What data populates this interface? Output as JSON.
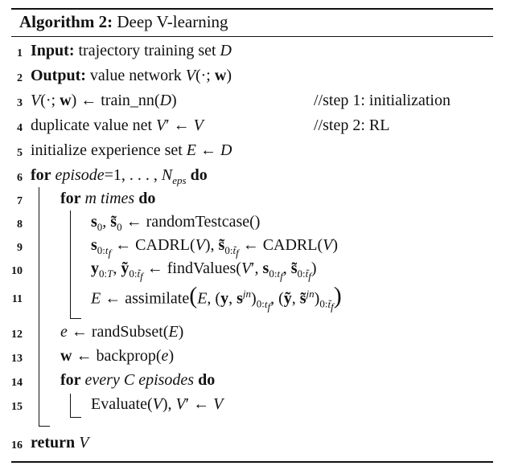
{
  "caption": {
    "label": "Algorithm 2:",
    "title": "Deep V-learning"
  },
  "line_numbers": [
    "1",
    "2",
    "3",
    "4",
    "5",
    "6",
    "7",
    "8",
    "9",
    "10",
    "11",
    "12",
    "13",
    "14",
    "15",
    "16"
  ],
  "keywords": {
    "input": "Input:",
    "output": "Output:",
    "for": "for",
    "do": "do",
    "return": "return"
  },
  "text": {
    "input_rest": "trajectory training set",
    "output_rest": "value network",
    "train_fn": "train_nn",
    "duplicate": "duplicate value net",
    "initialize": "initialize experience set",
    "episode": "episode",
    "m_times": "times",
    "random_testcase": "randomTestcase()",
    "cadrl": "CADRL",
    "find_values": "findValues",
    "assimilate": "assimilate",
    "rand_subset": "randSubset",
    "backprop": "backprop",
    "every": "every",
    "episodes": "episodes",
    "evaluate": "Evaluate"
  },
  "comments": {
    "step1": "//step 1: initialization",
    "step2": "//step 2: RL"
  },
  "math": {
    "set_D": "D",
    "set_E": "E",
    "V": "V",
    "w": "w",
    "e": "e",
    "m": "m",
    "C": "C",
    "arrow": "←",
    "episode_range": "=1, . . . , ",
    "N_eps_base": "N",
    "N_eps_sub": "eps"
  }
}
